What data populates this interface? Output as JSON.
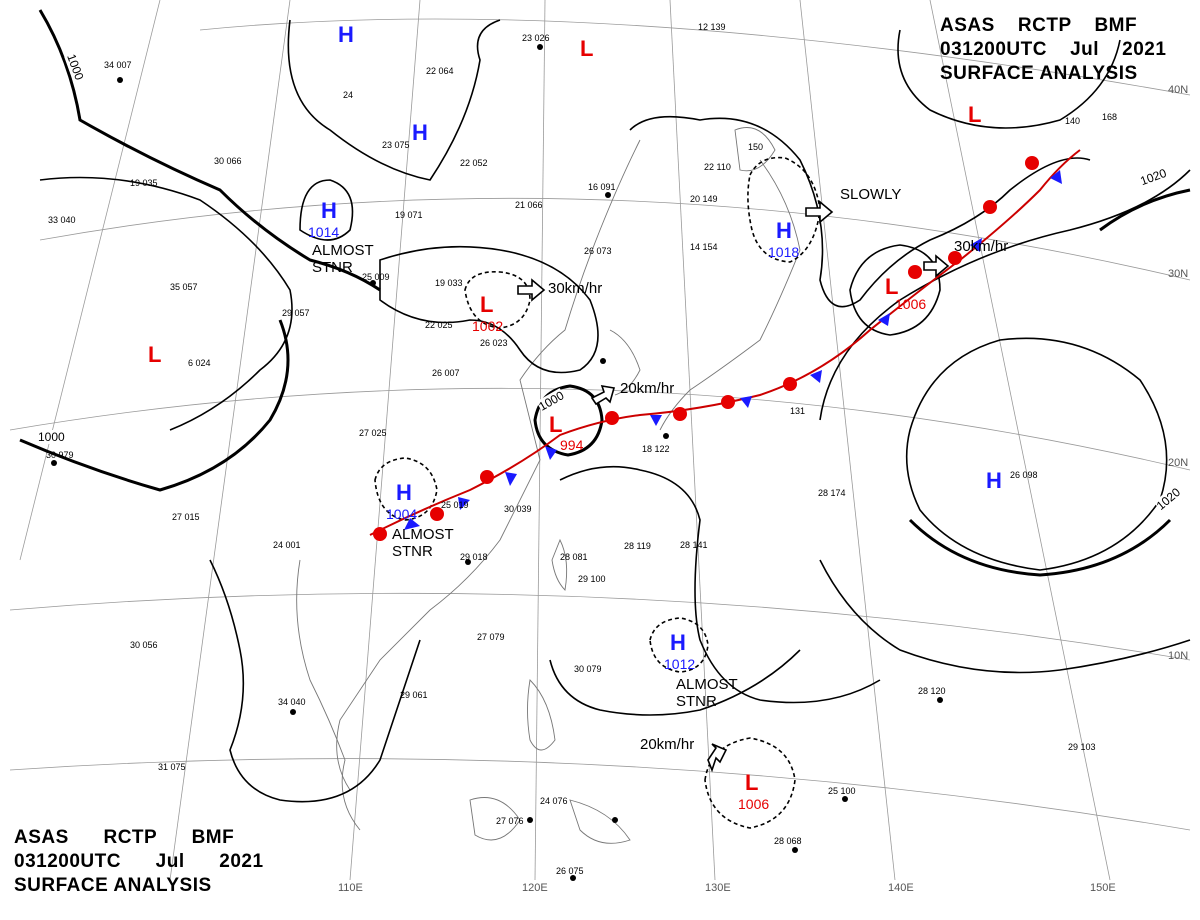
{
  "title": {
    "agency": "ASAS",
    "center": "RCTP",
    "source": "BMF",
    "datetime": "031200UTC",
    "month": "Jul",
    "year": "2021",
    "product": "SURFACE ANALYSIS"
  },
  "grid_labels": {
    "lon": [
      "110E",
      "120E",
      "130E",
      "140E",
      "150E"
    ],
    "lat": [
      "40N",
      "30N",
      "20N",
      "10N"
    ]
  },
  "isobar_labels": [
    "1000",
    "1000",
    "1000",
    "1020",
    "1020"
  ],
  "systems": [
    {
      "type": "H",
      "pressure": ""
    },
    {
      "type": "H",
      "pressure": ""
    },
    {
      "type": "H",
      "pressure": "1014"
    },
    {
      "type": "L",
      "pressure": ""
    },
    {
      "type": "L",
      "pressure": ""
    },
    {
      "type": "L",
      "pressure": "1002"
    },
    {
      "type": "L",
      "pressure": ""
    },
    {
      "type": "H",
      "pressure": "1018"
    },
    {
      "type": "L",
      "pressure": "1006"
    },
    {
      "type": "L",
      "pressure": "994"
    },
    {
      "type": "H",
      "pressure": "1004"
    },
    {
      "type": "H",
      "pressure": ""
    },
    {
      "type": "H",
      "pressure": "1012"
    },
    {
      "type": "L",
      "pressure": "1006"
    }
  ],
  "motion_notes": [
    "ALMOST\nSTNR",
    "30km/hr",
    "SLOWLY",
    "30km/hr",
    "20km/hr",
    "ALMOST\nSTNR",
    "ALMOST\nSTNR",
    "20km/hr"
  ],
  "station_plots": [
    "34 007",
    "22 064",
    "24",
    "23 075",
    "22 052",
    "23 026",
    "12 139",
    "30 066",
    "21 066",
    "19 071",
    "22 110",
    "150",
    "19 035",
    "25 009",
    "19 033",
    "22 025",
    "26 023",
    "26 007",
    "6 024",
    "33 040",
    "35 057",
    "29 057",
    "27 025",
    "30 979",
    "27 015",
    "24 001",
    "25 019",
    "30 039",
    "29 018",
    "28 081",
    "29 100",
    "27 079",
    "30 056",
    "34 040",
    "29 061",
    "31 075",
    "28 119",
    "28 141",
    "28 174",
    "131",
    "29 103",
    "28 120",
    "25 100",
    "28 068",
    "26 075",
    "27 076",
    "24 076",
    "30 079",
    "14 154",
    "26 073",
    "16 091",
    "18 122",
    "20 149",
    "168",
    "26 098",
    "140"
  ],
  "colors": {
    "high": "#1a1aff",
    "low": "#e60000",
    "isobar": "#000000",
    "grid": "#888888",
    "coast": "#777777",
    "cold_front": "#1a1aff",
    "warm_front": "#e60000"
  }
}
